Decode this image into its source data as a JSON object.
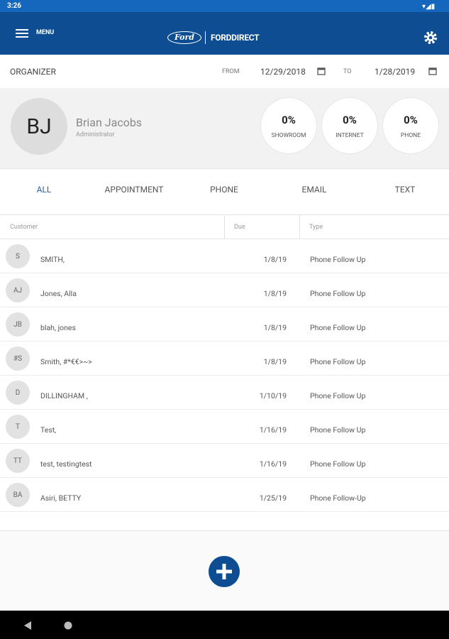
{
  "status_bar": {
    "time": "3:26"
  },
  "app_bar": {
    "menu": "MENU",
    "logo_oval": "Ford",
    "logo_text": "FORDDIRECT"
  },
  "organizer": {
    "title": "ORGANIZER",
    "from_label": "FROM",
    "from_date": "12/29/2018",
    "to_label": "TO",
    "to_date": "1/28/2019"
  },
  "profile": {
    "initials": "BJ",
    "name": "Brian Jacobs",
    "role": "Administrator"
  },
  "stats": [
    {
      "value": "0%",
      "label": "SHOWROOM"
    },
    {
      "value": "0%",
      "label": "INTERNET"
    },
    {
      "value": "0%",
      "label": "PHONE"
    }
  ],
  "tabs": [
    "ALL",
    "APPOINTMENT",
    "PHONE",
    "EMAIL",
    "TEXT"
  ],
  "table": {
    "headers": [
      "Customer",
      "Due",
      "Type"
    ],
    "rows": [
      [
        "S",
        "SMITH,",
        "1/8/19",
        "Phone Follow Up"
      ],
      [
        "AJ",
        "Jones, Alla",
        "1/8/19",
        "Phone Follow Up"
      ],
      [
        "JB",
        "blah, jones",
        "1/8/19",
        "Phone Follow Up"
      ],
      [
        "#S",
        "Smith, #*€€>~>",
        "1/8/19",
        "Phone Follow Up"
      ],
      [
        "D",
        "DILLINGHAM ,",
        "1/10/19",
        "Phone Follow Up"
      ],
      [
        "T",
        "Test,",
        "1/16/19",
        "Phone Follow Up"
      ],
      [
        "TT",
        "test, testingtest",
        "1/16/19",
        "Phone Follow Up"
      ],
      [
        "BA",
        "Asiri, BETTY",
        "1/25/19",
        "Phone Follow-Up"
      ]
    ]
  }
}
